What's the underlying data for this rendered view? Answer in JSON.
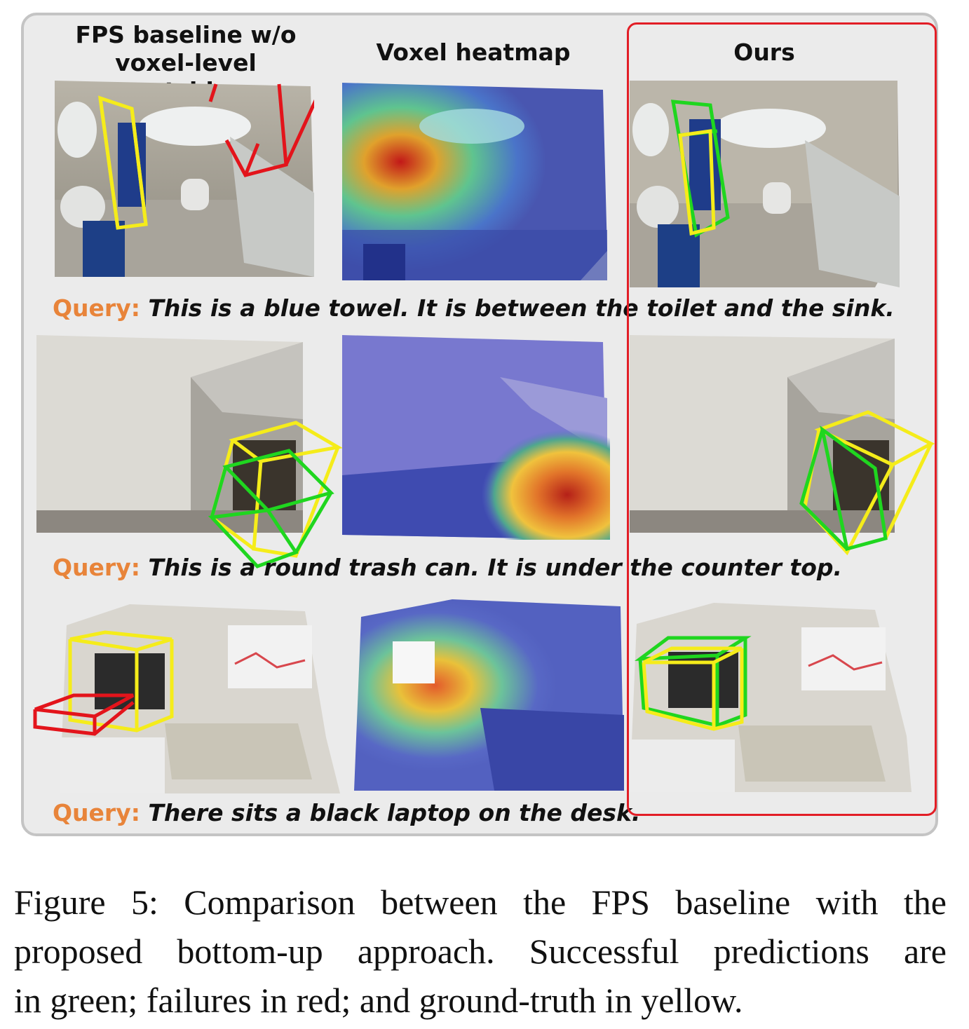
{
  "figure": {
    "columns": [
      {
        "heading_line1": "FPS baseline w/o",
        "heading_line2": "voxel-level matching"
      },
      {
        "heading": "Voxel heatmap"
      },
      {
        "heading": "Ours"
      }
    ],
    "rows": [
      {
        "query_label": "Query:",
        "query_text": "This is a blue towel. It is between the toilet and the sink."
      },
      {
        "query_label": "Query:",
        "query_text": "This is a round trash can. It is under the counter top."
      },
      {
        "query_label": "Query:",
        "query_text": "There sits a black laptop on the desk."
      }
    ],
    "colors": {
      "success": "#1fd61f",
      "failure": "#e3141b",
      "ground_truth": "#f5ec1a",
      "query_label": "#e8843a",
      "highlight_frame": "#e21e26"
    }
  },
  "caption": {
    "line1": "Figure 5: Comparison between the FPS baseline with the",
    "line2": "proposed bottom-up approach. Successful predictions are",
    "line3": "in green; failures in red; and ground-truth in yellow."
  }
}
